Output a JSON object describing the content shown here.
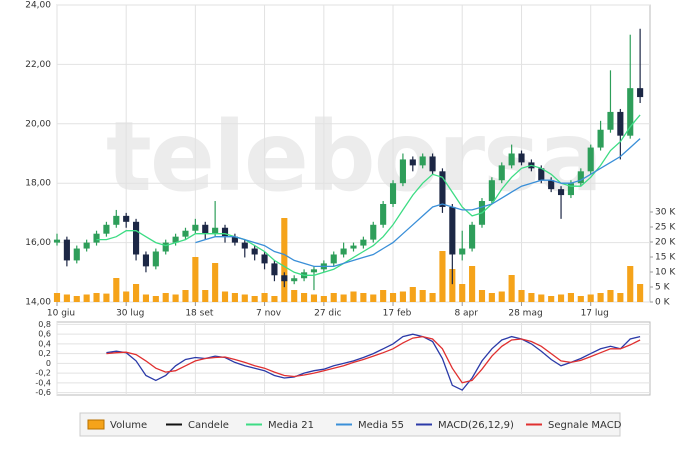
{
  "chart_data": [
    {
      "type": "candlestick",
      "watermark": "teleborsa",
      "grid": true,
      "xlim": [
        0,
        60
      ],
      "xticks": [
        {
          "value": 0,
          "label": "10 giu"
        },
        {
          "value": 7,
          "label": "30 lug"
        },
        {
          "value": 14,
          "label": "18 set"
        },
        {
          "value": 21,
          "label": "7 nov"
        },
        {
          "value": 27,
          "label": "27 dic"
        },
        {
          "value": 34,
          "label": "17 feb"
        },
        {
          "value": 41,
          "label": "8 apr"
        },
        {
          "value": 47,
          "label": "28 mag"
        },
        {
          "value": 54,
          "label": "17 lug"
        }
      ],
      "ylim": [
        14,
        24
      ],
      "yticks": [
        {
          "value": 14,
          "label": "14,00"
        },
        {
          "value": 16,
          "label": "16,00"
        },
        {
          "value": 18,
          "label": "18,00"
        },
        {
          "value": 20,
          "label": "20,00"
        },
        {
          "value": 22,
          "label": "22,00"
        },
        {
          "value": 24,
          "label": "24,00"
        }
      ],
      "y2lim": [
        0,
        99000
      ],
      "y2ticks": [
        {
          "value": 0,
          "label": "0 K"
        },
        {
          "value": 5000,
          "label": "5 K"
        },
        {
          "value": 10000,
          "label": "10 K"
        },
        {
          "value": 15000,
          "label": "15 K"
        },
        {
          "value": 20000,
          "label": "20 K"
        },
        {
          "value": 25000,
          "label": "25 K"
        },
        {
          "value": 30000,
          "label": "30 K"
        }
      ],
      "series": [
        {
          "name": "Candele",
          "kind": "candle",
          "color": "#111111",
          "up_color": "#2e9e5a",
          "down_color": "#1c2745",
          "open": [
            16.0,
            16.1,
            15.4,
            15.8,
            16.0,
            16.3,
            16.6,
            16.9,
            16.7,
            15.6,
            15.2,
            15.7,
            16.0,
            16.2,
            16.4,
            16.6,
            16.3,
            16.5,
            16.2,
            16.0,
            15.8,
            15.6,
            15.3,
            14.9,
            14.7,
            14.8,
            15.0,
            15.1,
            15.3,
            15.6,
            15.8,
            15.9,
            16.1,
            16.6,
            17.3,
            18.0,
            18.8,
            18.6,
            18.9,
            18.4,
            17.2,
            15.6,
            15.8,
            16.6,
            17.4,
            18.1,
            18.6,
            19.0,
            18.7,
            18.5,
            18.1,
            17.8,
            17.6,
            18.0,
            18.4,
            19.2,
            19.8,
            20.4,
            19.6,
            21.2
          ],
          "high": [
            16.3,
            16.2,
            15.9,
            16.1,
            16.4,
            16.7,
            17.1,
            17.0,
            16.8,
            15.7,
            15.8,
            16.1,
            16.3,
            16.5,
            16.8,
            16.7,
            17.4,
            16.6,
            16.3,
            16.1,
            15.9,
            15.7,
            15.4,
            15.0,
            14.9,
            15.1,
            15.2,
            15.4,
            15.7,
            16.0,
            16.0,
            16.2,
            16.7,
            17.4,
            18.1,
            19.0,
            18.9,
            19.0,
            19.0,
            18.5,
            17.3,
            16.4,
            16.7,
            17.5,
            18.2,
            18.7,
            19.3,
            19.1,
            18.8,
            18.6,
            18.2,
            17.9,
            18.1,
            18.5,
            19.3,
            20.1,
            21.8,
            20.5,
            23.0,
            23.2
          ],
          "low": [
            15.9,
            15.2,
            15.3,
            15.7,
            15.9,
            16.2,
            16.5,
            16.5,
            15.4,
            15.0,
            15.1,
            15.6,
            15.9,
            16.1,
            16.3,
            16.1,
            16.2,
            16.0,
            15.9,
            15.5,
            15.4,
            15.1,
            14.7,
            14.5,
            14.6,
            14.7,
            14.4,
            15.0,
            15.2,
            15.5,
            15.7,
            15.8,
            16.0,
            16.5,
            17.2,
            17.9,
            18.4,
            18.5,
            18.3,
            17.0,
            14.6,
            15.4,
            15.7,
            16.5,
            17.3,
            18.0,
            18.5,
            18.6,
            18.4,
            18.0,
            17.7,
            16.8,
            17.5,
            17.9,
            18.3,
            19.1,
            19.7,
            18.8,
            19.5,
            20.7
          ],
          "close": [
            16.1,
            15.4,
            15.8,
            16.0,
            16.3,
            16.6,
            16.9,
            16.7,
            15.6,
            15.2,
            15.7,
            16.0,
            16.2,
            16.4,
            16.6,
            16.3,
            16.5,
            16.2,
            16.0,
            15.8,
            15.6,
            15.3,
            14.9,
            14.7,
            14.8,
            15.0,
            15.1,
            15.3,
            15.6,
            15.8,
            15.9,
            16.1,
            16.6,
            17.3,
            18.0,
            18.8,
            18.6,
            18.9,
            18.4,
            17.2,
            15.6,
            15.8,
            16.6,
            17.4,
            18.1,
            18.6,
            19.0,
            18.7,
            18.5,
            18.1,
            17.8,
            17.6,
            18.0,
            18.4,
            19.2,
            19.8,
            20.4,
            19.6,
            21.2,
            20.9
          ]
        },
        {
          "name": "Volume",
          "kind": "volume",
          "axis": "y2",
          "color": "#f5a31a",
          "values": [
            3000,
            2500,
            2000,
            2500,
            3000,
            2800,
            8000,
            3500,
            6000,
            2500,
            2000,
            3000,
            2500,
            4000,
            15000,
            4000,
            13000,
            3500,
            3000,
            2500,
            2000,
            3000,
            2000,
            28000,
            4000,
            3000,
            2500,
            2000,
            3000,
            2500,
            3500,
            3000,
            2500,
            4000,
            3000,
            3500,
            5000,
            4000,
            3000,
            17000,
            11000,
            6000,
            12000,
            4000,
            3000,
            3500,
            9000,
            4000,
            3000,
            2500,
            2000,
            2500,
            3000,
            2000,
            2500,
            3000,
            4000,
            3000,
            12000,
            6000
          ]
        },
        {
          "name": "Media 21",
          "kind": "line",
          "color": "#3ddc84",
          "values": [
            null,
            null,
            null,
            null,
            16.1,
            16.1,
            16.2,
            16.4,
            16.4,
            16.2,
            16.0,
            15.9,
            16.0,
            16.1,
            16.3,
            16.3,
            16.3,
            16.3,
            16.2,
            16.1,
            15.9,
            15.7,
            15.4,
            15.2,
            15.0,
            14.9,
            14.9,
            15.0,
            15.1,
            15.3,
            15.5,
            15.7,
            15.9,
            16.2,
            16.6,
            17.1,
            17.6,
            18.0,
            18.3,
            18.2,
            17.7,
            17.2,
            16.9,
            17.0,
            17.3,
            17.8,
            18.2,
            18.5,
            18.6,
            18.5,
            18.3,
            18.0,
            17.9,
            17.9,
            18.2,
            18.6,
            19.1,
            19.4,
            19.9,
            20.3
          ]
        },
        {
          "name": "Media 55",
          "kind": "line",
          "color": "#3a8fd8",
          "values": [
            null,
            null,
            null,
            null,
            null,
            null,
            null,
            null,
            null,
            null,
            null,
            null,
            null,
            null,
            16.0,
            16.1,
            16.2,
            16.2,
            16.2,
            16.1,
            16.0,
            15.9,
            15.7,
            15.6,
            15.4,
            15.3,
            15.2,
            15.2,
            15.2,
            15.3,
            15.4,
            15.5,
            15.6,
            15.8,
            16.0,
            16.3,
            16.6,
            16.9,
            17.2,
            17.3,
            17.2,
            17.1,
            17.1,
            17.2,
            17.3,
            17.5,
            17.7,
            17.9,
            18.0,
            18.1,
            18.1,
            18.0,
            18.0,
            18.1,
            18.3,
            18.5,
            18.7,
            18.9,
            19.2,
            19.5
          ]
        }
      ]
    },
    {
      "type": "line",
      "grid": true,
      "xlim": [
        0,
        60
      ],
      "ylim": [
        -0.65,
        0.85
      ],
      "yticks": [
        {
          "value": 0.8,
          "label": "0,8"
        },
        {
          "value": 0.6,
          "label": "0,6"
        },
        {
          "value": 0.4,
          "label": "0,4"
        },
        {
          "value": 0.2,
          "label": "0,2"
        },
        0,
        {
          "value": -0.2,
          "label": "-0,2"
        },
        {
          "value": -0.4,
          "label": "-0,4"
        },
        {
          "value": -0.6,
          "label": "-0,6"
        }
      ],
      "series": [
        {
          "name": "MACD(26,12,9)",
          "color": "#2b3aa8",
          "values": [
            null,
            null,
            null,
            null,
            null,
            0.22,
            0.25,
            0.22,
            0.05,
            -0.25,
            -0.35,
            -0.25,
            -0.05,
            0.08,
            0.12,
            0.1,
            0.15,
            0.12,
            0.02,
            -0.05,
            -0.1,
            -0.15,
            -0.25,
            -0.3,
            -0.28,
            -0.2,
            -0.15,
            -0.12,
            -0.05,
            0.0,
            0.05,
            0.12,
            0.2,
            0.3,
            0.4,
            0.55,
            0.6,
            0.55,
            0.45,
            0.1,
            -0.45,
            -0.55,
            -0.3,
            0.05,
            0.3,
            0.48,
            0.55,
            0.5,
            0.4,
            0.25,
            0.08,
            -0.05,
            0.02,
            0.1,
            0.2,
            0.3,
            0.35,
            0.3,
            0.5,
            0.55
          ]
        },
        {
          "name": "Segnale MACD",
          "color": "#e03030",
          "values": [
            null,
            null,
            null,
            null,
            null,
            0.2,
            0.22,
            0.23,
            0.18,
            0.05,
            -0.1,
            -0.18,
            -0.15,
            -0.05,
            0.05,
            0.1,
            0.12,
            0.13,
            0.08,
            0.02,
            -0.05,
            -0.1,
            -0.18,
            -0.25,
            -0.27,
            -0.24,
            -0.2,
            -0.15,
            -0.1,
            -0.05,
            0.02,
            0.08,
            0.15,
            0.22,
            0.3,
            0.42,
            0.52,
            0.55,
            0.5,
            0.3,
            -0.1,
            -0.4,
            -0.35,
            -0.12,
            0.15,
            0.35,
            0.48,
            0.5,
            0.45,
            0.35,
            0.2,
            0.05,
            0.02,
            0.06,
            0.14,
            0.22,
            0.3,
            0.3,
            0.38,
            0.48
          ]
        }
      ]
    }
  ]
}
